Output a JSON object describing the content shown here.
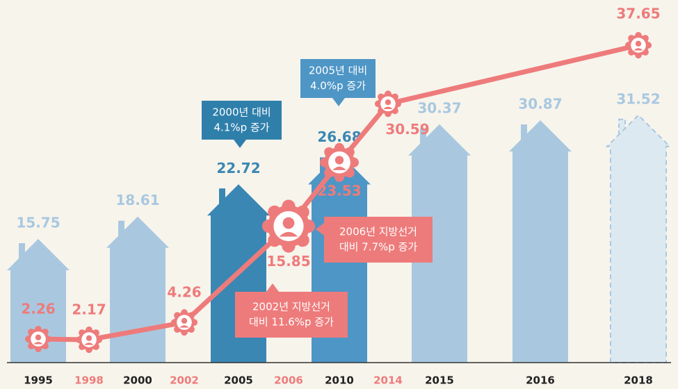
{
  "chart_data": {
    "type": "house-bar-line",
    "categories": [
      "1995",
      "1998",
      "2000",
      "2002",
      "2005",
      "2006",
      "2010",
      "2014",
      "2015",
      "2016",
      "2018"
    ],
    "category_colors": [
      "#222222",
      "#ee7b7b",
      "#222222",
      "#ee7b7b",
      "#222222",
      "#ee7b7b",
      "#222222",
      "#ee7b7b",
      "#222222",
      "#222222",
      "#222222"
    ],
    "series": [
      {
        "kind": "bar",
        "values": [
          15.75,
          null,
          18.61,
          null,
          22.72,
          null,
          26.68,
          null,
          30.37,
          30.87,
          31.52
        ],
        "colors": [
          "#a9c8e0",
          null,
          "#a9c8e0",
          null,
          "#3a87b3",
          null,
          "#4e96c6",
          null,
          "#a9c8e0",
          "#a9c8e0",
          "#dde9f1"
        ],
        "label_colors": [
          "#a9c8e0",
          null,
          "#a9c8e0",
          null,
          "#3a87b3",
          null,
          "#3a87b3",
          null,
          "#a9c8e0",
          "#a9c8e0",
          "#a9c8e0"
        ],
        "dashed": [
          false,
          null,
          false,
          null,
          false,
          null,
          false,
          null,
          false,
          false,
          true
        ]
      },
      {
        "kind": "line",
        "color": "#ee7b7b",
        "values": [
          2.26,
          2.17,
          null,
          4.26,
          null,
          15.85,
          23.53,
          30.59,
          null,
          null,
          37.65
        ]
      }
    ],
    "annotations": [
      {
        "lines": [
          "2000년 대비",
          "4.1%p 증가"
        ],
        "color": "#2f7fab"
      },
      {
        "lines": [
          "2005년 대비",
          "4.0%p 증가"
        ],
        "color": "#4e96c6"
      },
      {
        "lines": [
          "2006년 지방선거",
          "대비 7.7%p 증가"
        ],
        "color": "#ee7b7b"
      },
      {
        "lines": [
          "2002년 지방선거",
          "대비 11.6%p 증가"
        ],
        "color": "#ee7b7b"
      }
    ]
  }
}
